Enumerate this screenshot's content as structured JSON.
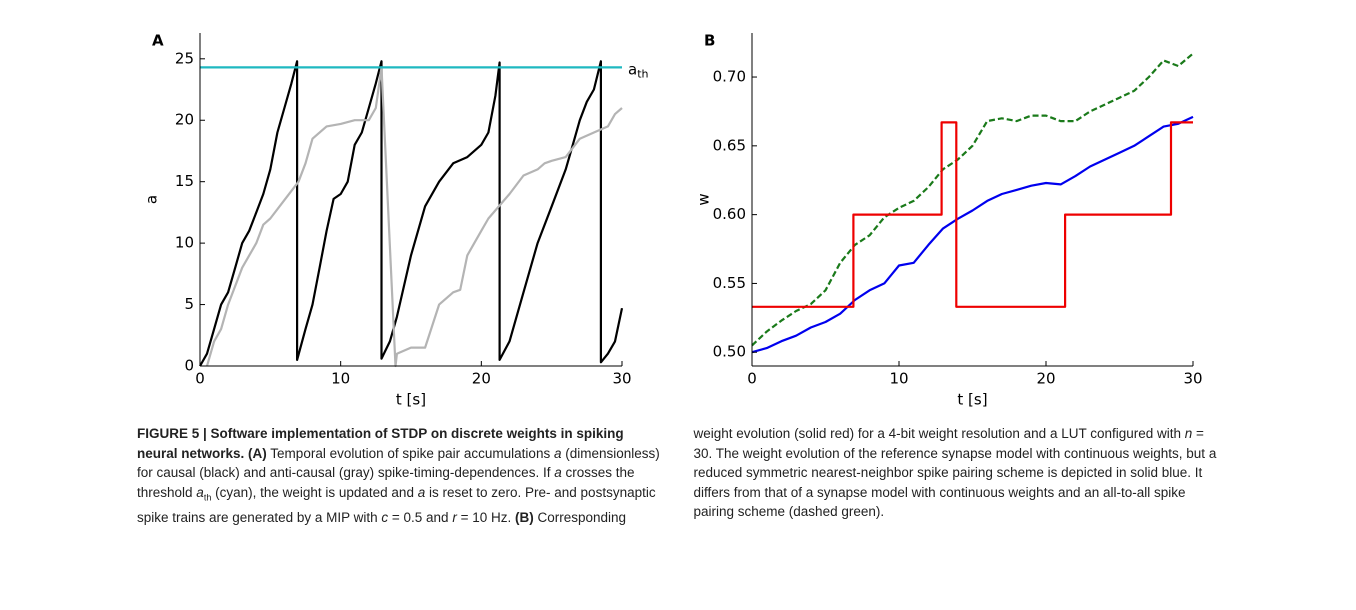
{
  "chart_data": [
    {
      "type": "line",
      "panel_label": "A",
      "x_label": "t [s]",
      "y_label": "a",
      "xlim": [
        0,
        30
      ],
      "ylim": [
        0,
        27.1
      ],
      "xticks": [
        0,
        10,
        20,
        30
      ],
      "yticks": [
        0,
        5,
        10,
        15,
        20,
        25
      ],
      "series": [
        {
          "color": "#000000",
          "x": [
            0,
            0.5,
            1,
            1.5,
            2,
            2.5,
            3,
            3.5,
            4,
            4.5,
            5,
            5.5,
            6,
            6.5,
            6.9,
            6.9,
            7.5,
            8,
            8.5,
            9,
            9.5,
            10,
            10.5,
            11,
            11.5,
            12,
            12.5,
            12.9,
            12.9,
            13.5,
            14,
            15,
            16,
            17,
            18,
            19,
            20,
            20.5,
            21,
            21.3,
            21.3,
            22,
            23,
            24,
            25,
            26,
            26.5,
            27,
            27.5,
            28,
            28.5,
            28.5,
            29,
            29.5,
            30
          ],
          "values": [
            0,
            1,
            3,
            5,
            6,
            8,
            10,
            11,
            12.5,
            14,
            16,
            19,
            21,
            23,
            24.8,
            0.5,
            3,
            5,
            8,
            11,
            13.6,
            14,
            15,
            18,
            19,
            21,
            23,
            24.8,
            0.6,
            2,
            4,
            9,
            13,
            15,
            16.5,
            17,
            18,
            19,
            22,
            24.7,
            0.5,
            2,
            6,
            10,
            13,
            16,
            18,
            20,
            21.5,
            22.5,
            24.8,
            0.3,
            1,
            2,
            4.7
          ]
        },
        {
          "color": "#b4b4b4",
          "x": [
            0.5,
            1,
            1.5,
            2,
            3,
            4,
            4.5,
            5,
            6,
            7,
            7.5,
            8,
            9,
            10,
            11,
            12,
            12.5,
            12.9,
            13.9,
            14,
            15,
            16,
            17,
            18,
            18.5,
            19,
            19.5,
            20,
            20.5,
            22,
            23,
            24,
            24.5,
            25,
            26,
            27,
            28,
            29,
            29.5,
            30
          ],
          "values": [
            0,
            2,
            3,
            5,
            8,
            10,
            11.5,
            12,
            13.5,
            15,
            16.5,
            18.5,
            19.5,
            19.7,
            20,
            20,
            21,
            24.3,
            0,
            1,
            1.5,
            1.5,
            5,
            6,
            6.2,
            9,
            10,
            11,
            12,
            14,
            15.5,
            16,
            16.5,
            16.7,
            17,
            18.5,
            19,
            19.5,
            20.5,
            21
          ]
        },
        {
          "color": "#1fb8c0",
          "x": [
            0,
            30
          ],
          "values": [
            24.3,
            24.3
          ],
          "label": "a",
          "label_sub": "th"
        }
      ]
    },
    {
      "type": "line",
      "panel_label": "B",
      "x_label": "t [s]",
      "y_label": "w",
      "xlim": [
        0,
        30
      ],
      "ylim": [
        0.49,
        0.732
      ],
      "xticks": [
        0,
        10,
        20,
        30
      ],
      "yticks": [
        {
          "value": 0.5,
          "label": "0.50"
        },
        {
          "value": 0.55,
          "label": "0.55"
        },
        {
          "value": 0.6,
          "label": "0.60"
        },
        {
          "value": 0.65,
          "label": "0.65"
        },
        {
          "value": 0.7,
          "label": "0.70"
        }
      ],
      "series": [
        {
          "color": "#0000ee",
          "x": [
            0,
            1,
            2,
            3,
            4,
            5,
            6,
            7,
            8,
            9,
            10,
            11,
            12,
            13,
            14,
            15,
            16,
            17,
            18,
            19,
            20,
            21,
            22,
            23,
            24,
            25,
            26,
            27,
            28,
            29,
            30
          ],
          "values": [
            0.5,
            0.503,
            0.508,
            0.512,
            0.518,
            0.522,
            0.528,
            0.538,
            0.545,
            0.55,
            0.563,
            0.565,
            0.578,
            0.59,
            0.597,
            0.603,
            0.61,
            0.615,
            0.618,
            0.621,
            0.623,
            0.622,
            0.628,
            0.635,
            0.64,
            0.645,
            0.65,
            0.657,
            0.664,
            0.666,
            0.671
          ]
        },
        {
          "color": "#1a7a1a",
          "dashed": true,
          "x": [
            0,
            1,
            2,
            3,
            4,
            5,
            6,
            7,
            8,
            9,
            10,
            11,
            12,
            13,
            14,
            15,
            16,
            17,
            18,
            19,
            20,
            21,
            22,
            23,
            24,
            25,
            26,
            27,
            28,
            29,
            30
          ],
          "values": [
            0.505,
            0.515,
            0.523,
            0.53,
            0.535,
            0.545,
            0.565,
            0.578,
            0.585,
            0.598,
            0.605,
            0.61,
            0.62,
            0.633,
            0.64,
            0.65,
            0.668,
            0.67,
            0.668,
            0.672,
            0.672,
            0.668,
            0.668,
            0.675,
            0.68,
            0.685,
            0.69,
            0.7,
            0.712,
            0.708,
            0.717
          ]
        },
        {
          "color": "#ee0000",
          "x": [
            0,
            6.9,
            6.9,
            12.9,
            12.9,
            13.9,
            13.9,
            21.3,
            21.3,
            28.5,
            28.5,
            30
          ],
          "values": [
            0.533,
            0.533,
            0.6,
            0.6,
            0.667,
            0.667,
            0.533,
            0.533,
            0.6,
            0.6,
            0.667,
            0.667
          ]
        }
      ]
    }
  ],
  "caption": {
    "runs": [
      {
        "style": "b",
        "text": "FIGURE 5 | Software implementation of STDP on discrete weights in spiking neural networks."
      },
      {
        "style": "b",
        "text": " (A)"
      },
      {
        "style": "plain",
        "text": " Temporal evolution of spike pair accumulations "
      },
      {
        "style": "i",
        "text": "a"
      },
      {
        "style": "plain",
        "text": " (dimensionless) for causal (black) and anti-causal (gray) spike-timing-dependences. If "
      },
      {
        "style": "i",
        "text": "a"
      },
      {
        "style": "plain",
        "text": " crosses the threshold "
      },
      {
        "style": "i",
        "text": "a"
      },
      {
        "style": "sub",
        "text": "th"
      },
      {
        "style": "plain",
        "text": " (cyan), the weight is updated and "
      },
      {
        "style": "i",
        "text": "a"
      },
      {
        "style": "plain",
        "text": " is reset to zero. Pre- and postsynaptic spike trains are generated by a MIP with "
      },
      {
        "style": "i",
        "text": "c"
      },
      {
        "style": "plain",
        "text": " = 0.5 and "
      },
      {
        "style": "i",
        "text": "r"
      },
      {
        "style": "plain",
        "text": " = 10 Hz. "
      },
      {
        "style": "b",
        "text": "(B)"
      },
      {
        "style": "plain",
        "text": " Corresponding weight evolution (solid red) for a 4-bit weight resolution and a LUT configured with "
      },
      {
        "style": "i",
        "text": "n"
      },
      {
        "style": "plain",
        "text": " = 30. The weight evolution of the reference synapse model with continuous weights, but a reduced symmetric nearest-neighbor spike pairing scheme is depicted in solid blue. It differs from that of a synapse model with continuous weights and an all-to-all spike pairing scheme (dashed green)."
      }
    ]
  }
}
